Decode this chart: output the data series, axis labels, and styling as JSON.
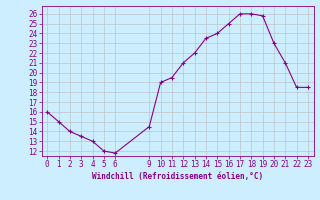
{
  "x": [
    0,
    1,
    2,
    3,
    4,
    5,
    6,
    9,
    10,
    11,
    12,
    13,
    14,
    15,
    16,
    17,
    18,
    19,
    20,
    21,
    22,
    23
  ],
  "y": [
    16,
    15,
    14,
    13.5,
    13,
    12,
    11.8,
    14.5,
    19,
    19.5,
    21,
    22,
    23.5,
    24,
    25,
    26,
    26,
    25.8,
    23,
    21,
    18.5,
    18.5
  ],
  "line_color": "#880088",
  "marker_color": "#880088",
  "bg_color": "#cceeff",
  "grid_color": "#bbbbbb",
  "xlabel": "Windchill (Refroidissement éolien,°C)",
  "yticks": [
    12,
    13,
    14,
    15,
    16,
    17,
    18,
    19,
    20,
    21,
    22,
    23,
    24,
    25,
    26
  ],
  "xticks": [
    0,
    1,
    2,
    3,
    4,
    5,
    6,
    9,
    10,
    11,
    12,
    13,
    14,
    15,
    16,
    17,
    18,
    19,
    20,
    21,
    22,
    23
  ],
  "ylim": [
    11.5,
    26.8
  ],
  "xlim": [
    -0.5,
    23.5
  ],
  "tick_fontsize": 5.5,
  "xlabel_fontsize": 5.5
}
